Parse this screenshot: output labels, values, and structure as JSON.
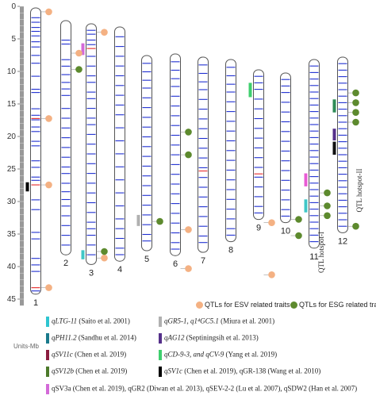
{
  "axis": {
    "ticks": [
      "0",
      "5",
      "10",
      "15",
      "20",
      "25",
      "30",
      "35",
      "40",
      "45"
    ],
    "tick_values": [
      0,
      5,
      10,
      15,
      20,
      25,
      30,
      35,
      40,
      45
    ],
    "max": 46,
    "unit_label": "Units-Mb"
  },
  "chromosomes": [
    {
      "label": "1",
      "length": 44,
      "centromere": null,
      "blue": [
        1.5,
        2.2,
        3.0,
        3.6,
        4.3,
        5.2,
        6.0,
        7.3,
        8.5,
        10.5,
        12.5,
        13.0,
        15.5,
        16.5,
        17.2,
        18.3,
        19.0,
        20.5,
        21.2,
        23.5,
        24.5,
        26.0,
        26.5,
        29.5,
        31.0,
        34.5,
        35.5,
        38.5,
        39.5,
        40.5,
        43.5
      ],
      "red": [
        17.0,
        27.2,
        43.0
      ]
    },
    {
      "label": "2",
      "length": 36,
      "centromere": null,
      "blue": [
        3.0,
        3.6,
        6.0,
        7.0,
        8.3,
        9.5,
        10.5,
        11.5,
        13.5,
        15.0,
        16.5,
        18.0,
        19.5,
        21.0,
        22.5,
        23.5,
        25.0,
        26.3,
        27.5,
        28.5,
        30.0,
        31.5,
        33.0,
        34.5
      ],
      "red": []
    },
    {
      "label": "3",
      "length": 37,
      "centromere": null,
      "blue": [
        1.0,
        1.6,
        2.5,
        3.2,
        5.0,
        6.5,
        8.0,
        9.0,
        10.5,
        11.5,
        13.0,
        14.5,
        15.5,
        17.0,
        18.5,
        20.0,
        21.5,
        23.0,
        24.5,
        26.0,
        27.5,
        29.0,
        30.5,
        31.5,
        32.5,
        34.0,
        35.5
      ],
      "red": [
        3.8
      ]
    },
    {
      "label": "4",
      "length": 36,
      "centromere": null,
      "blue": [
        1.5,
        3.0,
        4.5,
        6.0,
        7.5,
        9.0,
        10.5,
        12.0,
        13.5,
        15.5,
        17.5,
        19.5,
        21.5,
        23.5,
        25.5,
        27.5,
        29.5,
        31.0,
        32.5,
        34.0,
        35.0
      ],
      "red": []
    },
    {
      "label": "5",
      "length": 30,
      "centromere": null,
      "blue": [
        1.2,
        2.5,
        3.8,
        5.0,
        6.5,
        8.0,
        9.5,
        11.0,
        12.5,
        14.0,
        15.5,
        17.0,
        18.5,
        20.0,
        21.5,
        23.0,
        24.5,
        26.0,
        27.5,
        28.5
      ],
      "red": []
    },
    {
      "label": "6",
      "length": 31,
      "centromere": null,
      "blue": [
        1.2,
        2.5,
        3.8,
        5.0,
        6.5,
        8.0,
        9.5,
        11.0,
        12.5,
        14.0,
        15.5,
        17.0,
        18.5,
        20.0,
        21.5,
        23.0,
        24.5,
        26.0,
        27.5,
        29.0,
        30.0
      ],
      "red": []
    },
    {
      "label": "7",
      "length": 30,
      "centromere": null,
      "blue": [
        1.2,
        2.5,
        3.8,
        5.0,
        6.5,
        8.0,
        9.5,
        11.0,
        12.5,
        14.0,
        15.5,
        17.0,
        18.5,
        20.0,
        21.5,
        23.0,
        24.5,
        26.0,
        27.5,
        28.5
      ],
      "red": [
        17.5
      ]
    },
    {
      "label": "8",
      "length": 28,
      "centromere": null,
      "blue": [
        1.2,
        2.5,
        3.8,
        5.0,
        6.5,
        8.0,
        9.5,
        11.0,
        12.5,
        14.0,
        15.5,
        17.0,
        18.5,
        20.0,
        21.5,
        23.0,
        24.5,
        26.0,
        27.0
      ],
      "red": []
    },
    {
      "label": "9",
      "length": 23,
      "centromere": null,
      "blue": [
        1.0,
        2.0,
        3.0,
        4.5,
        6.0,
        7.5,
        9.0,
        10.5,
        12.0,
        13.5,
        15.0,
        16.5,
        18.0,
        19.5,
        21.0,
        22.0
      ],
      "red": [
        16.0
      ]
    },
    {
      "label": "10",
      "length": 23,
      "centromere": null,
      "blue": [
        1.0,
        2.0,
        3.0,
        4.5,
        6.0,
        7.5,
        9.0,
        10.5,
        12.0,
        13.5,
        15.0,
        16.5,
        18.0,
        19.5,
        21.0,
        22.0
      ],
      "red": []
    },
    {
      "label": "11",
      "length": 29,
      "centromere": null,
      "blue": [
        1.0,
        2.0,
        3.0,
        4.0,
        5.0,
        6.0,
        7.0,
        8.0,
        9.0,
        10.0,
        11.0,
        12.0,
        13.0,
        14.0,
        15.0,
        16.0,
        17.0,
        18.0,
        19.0,
        20.0,
        21.0,
        22.0,
        23.0,
        24.0,
        25.0,
        26.0,
        27.0,
        28.0
      ],
      "red": []
    },
    {
      "label": "12",
      "length": 27,
      "centromere": null,
      "blue": [
        1.0,
        2.0,
        3.0,
        4.0,
        5.0,
        6.0,
        7.0,
        8.0,
        9.0,
        10.0,
        11.0,
        12.0,
        13.0,
        14.0,
        15.0,
        16.0,
        17.0,
        18.0,
        19.0,
        20.0,
        21.0,
        22.0,
        23.0,
        24.0,
        25.0,
        26.0
      ],
      "red": []
    }
  ],
  "esv_markers": [
    {
      "chr": "1",
      "pos": 0.6
    },
    {
      "chr": "1",
      "pos": 17.0
    },
    {
      "chr": "1",
      "pos": 27.2
    },
    {
      "chr": "1",
      "pos": 43.0
    },
    {
      "chr": "2",
      "pos": 5.0
    },
    {
      "chr": "3",
      "pos": 1.3
    },
    {
      "chr": "3",
      "pos": 36.0
    },
    {
      "chr": "6",
      "pos": 27.0
    },
    {
      "chr": "6",
      "pos": 33.0
    },
    {
      "chr": "9",
      "pos": 23.5
    },
    {
      "chr": "9",
      "pos": 31.5
    }
  ],
  "esg_markers": [
    {
      "chr": "2",
      "pos": 7.5
    },
    {
      "chr": "3",
      "pos": 35.0
    },
    {
      "chr": "5",
      "pos": 25.5
    },
    {
      "chr": "6",
      "pos": 12.0
    },
    {
      "chr": "6",
      "pos": 15.5
    },
    {
      "chr": "10",
      "pos": 22.5
    },
    {
      "chr": "10",
      "pos": 25.0
    },
    {
      "chr": "11",
      "pos": 20.5
    },
    {
      "chr": "11",
      "pos": 22.5
    },
    {
      "chr": "11",
      "pos": 24.0
    },
    {
      "chr": "12",
      "pos": 5.5
    },
    {
      "chr": "12",
      "pos": 7.0
    },
    {
      "chr": "12",
      "pos": 8.5
    },
    {
      "chr": "12",
      "pos": 10.0
    },
    {
      "chr": "12",
      "pos": 26.0
    }
  ],
  "qtl_bars": [
    {
      "chr": "1",
      "start": 26.8,
      "end": 28.2,
      "color": "#000000"
    },
    {
      "chr": "3",
      "start": 3.0,
      "end": 4.8,
      "color": "#d36ad8"
    },
    {
      "chr": "3",
      "start": 34.8,
      "end": 36.2,
      "color": "#3fc7c7"
    },
    {
      "chr": "5",
      "start": 24.5,
      "end": 26.2,
      "color": "#b0b0b0"
    },
    {
      "chr": "9",
      "start": 2.0,
      "end": 4.2,
      "color": "#3fcf6e"
    },
    {
      "chr": "11",
      "start": 17.5,
      "end": 19.5,
      "color": "#e85bd4"
    },
    {
      "chr": "11",
      "start": 21.5,
      "end": 23.5,
      "color": "#3fc7c7"
    },
    {
      "chr": "12",
      "start": 11.0,
      "end": 12.8,
      "color": "#55308a"
    },
    {
      "chr": "12",
      "start": 13.0,
      "end": 15.0,
      "color": "#111111"
    },
    {
      "chr": "12",
      "start": 6.5,
      "end": 8.5,
      "color": "#2e8b57"
    }
  ],
  "hotspots": [
    {
      "label": "QTL hotspot-I",
      "chr": "11"
    },
    {
      "label": "QTL hotspot-II",
      "chr": "12"
    }
  ],
  "marker_legend": {
    "esv": "QTLs for ESV related traits",
    "esg": "QTLs for ESG related traits",
    "esv_color": "#f4b183",
    "esg_color": "#5d8a2e"
  },
  "legend_left": [
    {
      "color": "#2ec5d0",
      "name": "qLTG-11",
      "cite": " (Saito et al. 2001)"
    },
    {
      "color": "#1a7a8c",
      "name": "qPH11.2",
      "cite": " (Sandhu et al. 2014)"
    },
    {
      "color": "#8b1d3f",
      "name": "qSV11c",
      "cite": " (Chen et al. 2019)"
    },
    {
      "color": "#4c7a2a",
      "name": "qSV12b",
      "cite": " (Chen et al. 2019)"
    }
  ],
  "legend_right": [
    {
      "color": "#b0b0b0",
      "name": "qGR5-1, q1⁴GC5.1",
      "cite": " (Miura et al. 2001)"
    },
    {
      "color": "#55308a",
      "name": "qAG12",
      "cite": " (Septiningsih et al. 2013)"
    },
    {
      "color": "#3fcf6e",
      "name": "qCD-9-3, and qCV-9",
      "cite": " (Yang et al. 2019)"
    },
    {
      "color": "#000000",
      "name": "qSV1c",
      "cite": " (Chen et al. 2019), qGR-138 (Wang et al. 2010)"
    }
  ],
  "legend_bottom": {
    "color": "#d36ad8",
    "text": "qSV3a (Chen et al. 2019), qGR2 (Diwan et al. 2013), qSEV-2-2 (Lu et al. 2007), qSDW2 (Han et al. 2007)"
  },
  "colors": {
    "blue": "#1f2fd1",
    "red": "#e83a3a",
    "outline": "#555555",
    "ruler": "#999999"
  }
}
